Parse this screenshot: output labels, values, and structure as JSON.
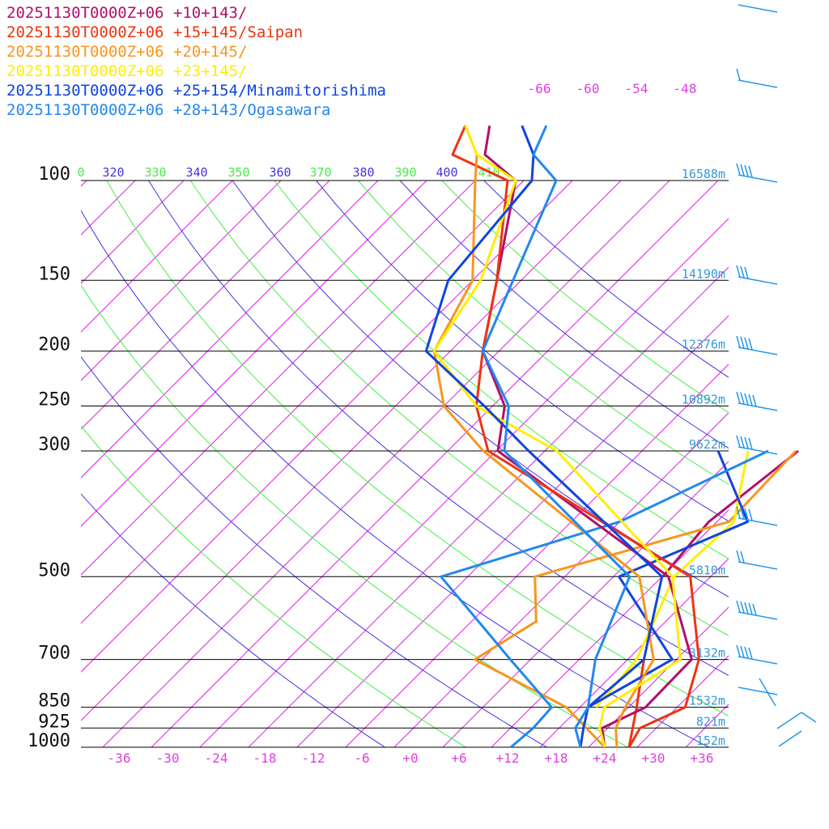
{
  "chart_data": {
    "type": "line",
    "chart_kind": "skew-T log-p sounding",
    "y_axis": {
      "scale": "log-pressure",
      "unit": "hPa",
      "range": [
        1000,
        100
      ],
      "ticks": [
        100,
        150,
        200,
        250,
        300,
        500,
        700,
        850,
        925,
        1000
      ]
    },
    "x_axis": {
      "skew": true,
      "ticks": [
        "-36",
        "-30",
        "-24",
        "-18",
        "-12",
        "-6",
        "+0",
        "+6",
        "+12",
        "+18",
        "+24",
        "+30",
        "+36"
      ],
      "tick_values": [
        -36,
        -30,
        -24,
        -18,
        -12,
        -6,
        0,
        6,
        12,
        18,
        24,
        30,
        36
      ]
    },
    "height_labels": [
      {
        "p": 100,
        "label": "16588m"
      },
      {
        "p": 150,
        "label": "14190m"
      },
      {
        "p": 200,
        "label": "12376m"
      },
      {
        "p": 250,
        "label": "10892m"
      },
      {
        "p": 300,
        "label": "9622m"
      },
      {
        "p": 500,
        "label": "5810m"
      },
      {
        "p": 700,
        "label": "3132m"
      },
      {
        "p": 850,
        "label": "1532m"
      },
      {
        "p": 925,
        "label": "821m"
      },
      {
        "p": 1000,
        "label": "152m"
      }
    ],
    "theta_labels": [
      "0",
      "320",
      "330",
      "340",
      "350",
      "360",
      "370",
      "380",
      "390",
      "400",
      "410"
    ],
    "mixing_ratio_labels": [
      "-66",
      "-60",
      "-54",
      "-48"
    ],
    "grid": true,
    "legend_position": "top-left",
    "series": [
      {
        "name": "20251130T0000Z+06 +10+143/",
        "color": "#b0106a",
        "temperature": [
          [
            1000,
            24
          ],
          [
            925,
            21.3
          ],
          [
            850,
            24.1
          ],
          [
            700,
            23.9
          ],
          [
            500,
            10.8
          ],
          [
            300,
            -25.8
          ],
          [
            250,
            -30.5
          ],
          [
            200,
            -40
          ],
          [
            150,
            -47
          ],
          [
            100,
            -57
          ],
          [
            90,
            -64
          ],
          [
            80,
            -67
          ]
        ],
        "dewpoint": [
          [
            500,
            10.1
          ],
          [
            400,
            9
          ],
          [
            300,
            11.3
          ]
        ]
      },
      {
        "name": "20251130T0000Z+06 +15+145/Saipan",
        "color": "#ee3311",
        "temperature": [
          [
            1000,
            27
          ],
          [
            925,
            26
          ],
          [
            850,
            29
          ],
          [
            700,
            24.8
          ],
          [
            500,
            13.5
          ],
          [
            300,
            -27
          ],
          [
            250,
            -34
          ],
          [
            200,
            -40
          ],
          [
            150,
            -47
          ],
          [
            100,
            -58
          ],
          [
            90,
            -68
          ],
          [
            80,
            -70
          ]
        ],
        "dewpoint": [
          [
            1000,
            27
          ],
          [
            850,
            23
          ],
          [
            700,
            18
          ]
        ]
      },
      {
        "name": "20251130T0000Z+06 +20+145/",
        "color": "#f8961e",
        "temperature": [
          [
            1000,
            25.5
          ],
          [
            925,
            23
          ],
          [
            850,
            21.6
          ],
          [
            700,
            19.2
          ],
          [
            500,
            7.2
          ],
          [
            300,
            -27.6
          ],
          [
            250,
            -38
          ],
          [
            200,
            -46
          ],
          [
            150,
            -50
          ],
          [
            100,
            -62
          ],
          [
            90,
            -65
          ],
          [
            80,
            -70
          ]
        ],
        "dewpoint": [
          [
            1000,
            24
          ],
          [
            850,
            14.3
          ],
          [
            700,
            -2.9
          ],
          [
            600,
            0
          ],
          [
            500,
            -5.7
          ],
          [
            400,
            11.5
          ],
          [
            300,
            11
          ]
        ]
      },
      {
        "name": "20251130T0000Z+06 +23+145/",
        "color": "#ffee00",
        "temperature": [
          [
            1000,
            24
          ],
          [
            925,
            21
          ],
          [
            850,
            19
          ],
          [
            700,
            22.5
          ],
          [
            500,
            11.3
          ],
          [
            300,
            -18.5
          ],
          [
            250,
            -34
          ],
          [
            200,
            -46
          ],
          [
            150,
            -49
          ],
          [
            100,
            -57
          ],
          [
            90,
            -65
          ],
          [
            80,
            -70
          ]
        ],
        "dewpoint": [
          [
            850,
            18
          ],
          [
            700,
            17.1
          ],
          [
            500,
            11.5
          ],
          [
            400,
            12.1
          ],
          [
            300,
            5.1
          ]
        ]
      },
      {
        "name": "20251130T0000Z+06 +25+154/Minamitorishima",
        "color": "#1144dd",
        "temperature": [
          [
            1000,
            21
          ],
          [
            925,
            19
          ],
          [
            850,
            17
          ],
          [
            700,
            18
          ],
          [
            500,
            10
          ],
          [
            300,
            -22
          ],
          [
            250,
            -33
          ],
          [
            200,
            -47
          ],
          [
            150,
            -53
          ],
          [
            100,
            -55
          ],
          [
            90,
            -58
          ],
          [
            80,
            -63
          ]
        ],
        "dewpoint": [
          [
            850,
            17
          ],
          [
            700,
            21.5
          ],
          [
            500,
            4.7
          ],
          [
            400,
            13.8
          ],
          [
            300,
            1.4
          ]
        ]
      },
      {
        "name": "20251130T0000Z+06 +28+143/Ogasawara",
        "color": "#2288ee",
        "temperature": [
          [
            1000,
            21
          ],
          [
            925,
            18
          ],
          [
            850,
            17
          ],
          [
            700,
            12
          ],
          [
            500,
            6
          ],
          [
            300,
            -25
          ],
          [
            250,
            -30
          ],
          [
            200,
            -40
          ],
          [
            150,
            -45
          ],
          [
            100,
            -52
          ],
          [
            90,
            -58
          ],
          [
            80,
            -60
          ]
        ],
        "dewpoint": [
          [
            1000,
            12.4
          ],
          [
            925,
            12.8
          ],
          [
            850,
            12.5
          ],
          [
            700,
            1.5
          ],
          [
            500,
            -17.3
          ],
          [
            400,
            -2
          ],
          [
            300,
            7.6
          ]
        ]
      }
    ]
  }
}
